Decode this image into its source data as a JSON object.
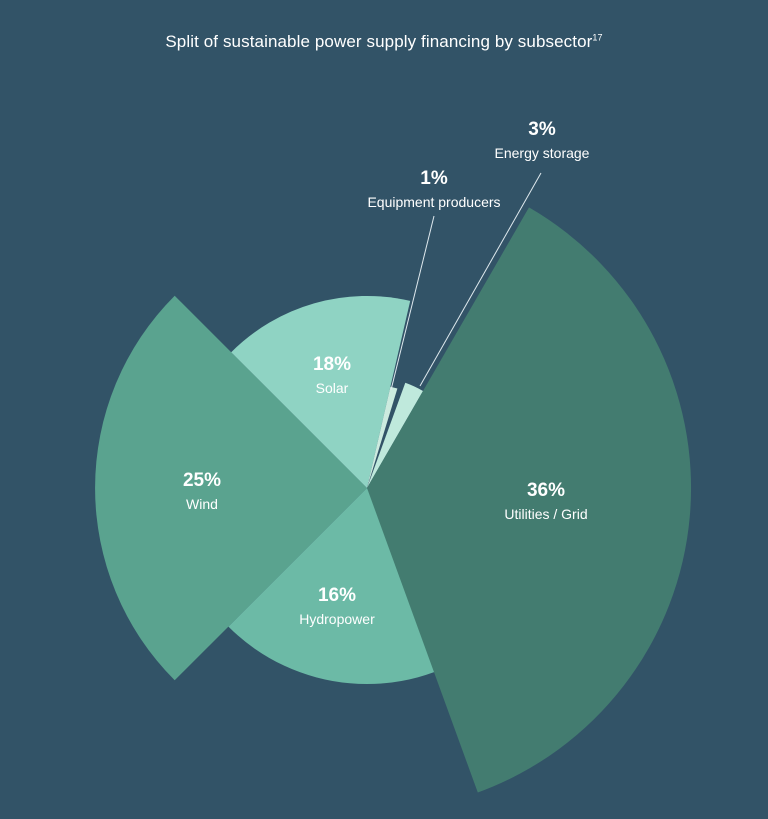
{
  "title": "Split of sustainable power supply financing by subsector",
  "title_note": "17",
  "colors": {
    "background": "#325367",
    "wind": "#5aa38f",
    "solar": "#8fd3c3",
    "equipment_producers": "#ccebdf",
    "energy_storage": "#bfe9dc",
    "utilities_grid": "#437c70",
    "hydropower": "#6cbaa6",
    "leader_line": "#dfe9ee"
  },
  "chart_data": {
    "type": "pie",
    "variant": "variable-radius pie (rose)",
    "unit": "%",
    "slices": [
      {
        "label": "Solar",
        "value": 18,
        "value_label": "18%",
        "color": "#8fd3c3"
      },
      {
        "label": "Equipment producers",
        "value": 1,
        "value_label": "1%",
        "color": "#ccebdf"
      },
      {
        "label": "Energy storage",
        "value": 3,
        "value_label": "3%",
        "color": "#bfe9dc"
      },
      {
        "label": "Utilities / Grid",
        "value": 36,
        "value_label": "36%",
        "color": "#437c70"
      },
      {
        "label": "Hydropower",
        "value": 16,
        "value_label": "16%",
        "color": "#6cbaa6"
      },
      {
        "label": "Wind",
        "value": 25,
        "value_label": "25%",
        "color": "#5aa38f"
      }
    ]
  }
}
